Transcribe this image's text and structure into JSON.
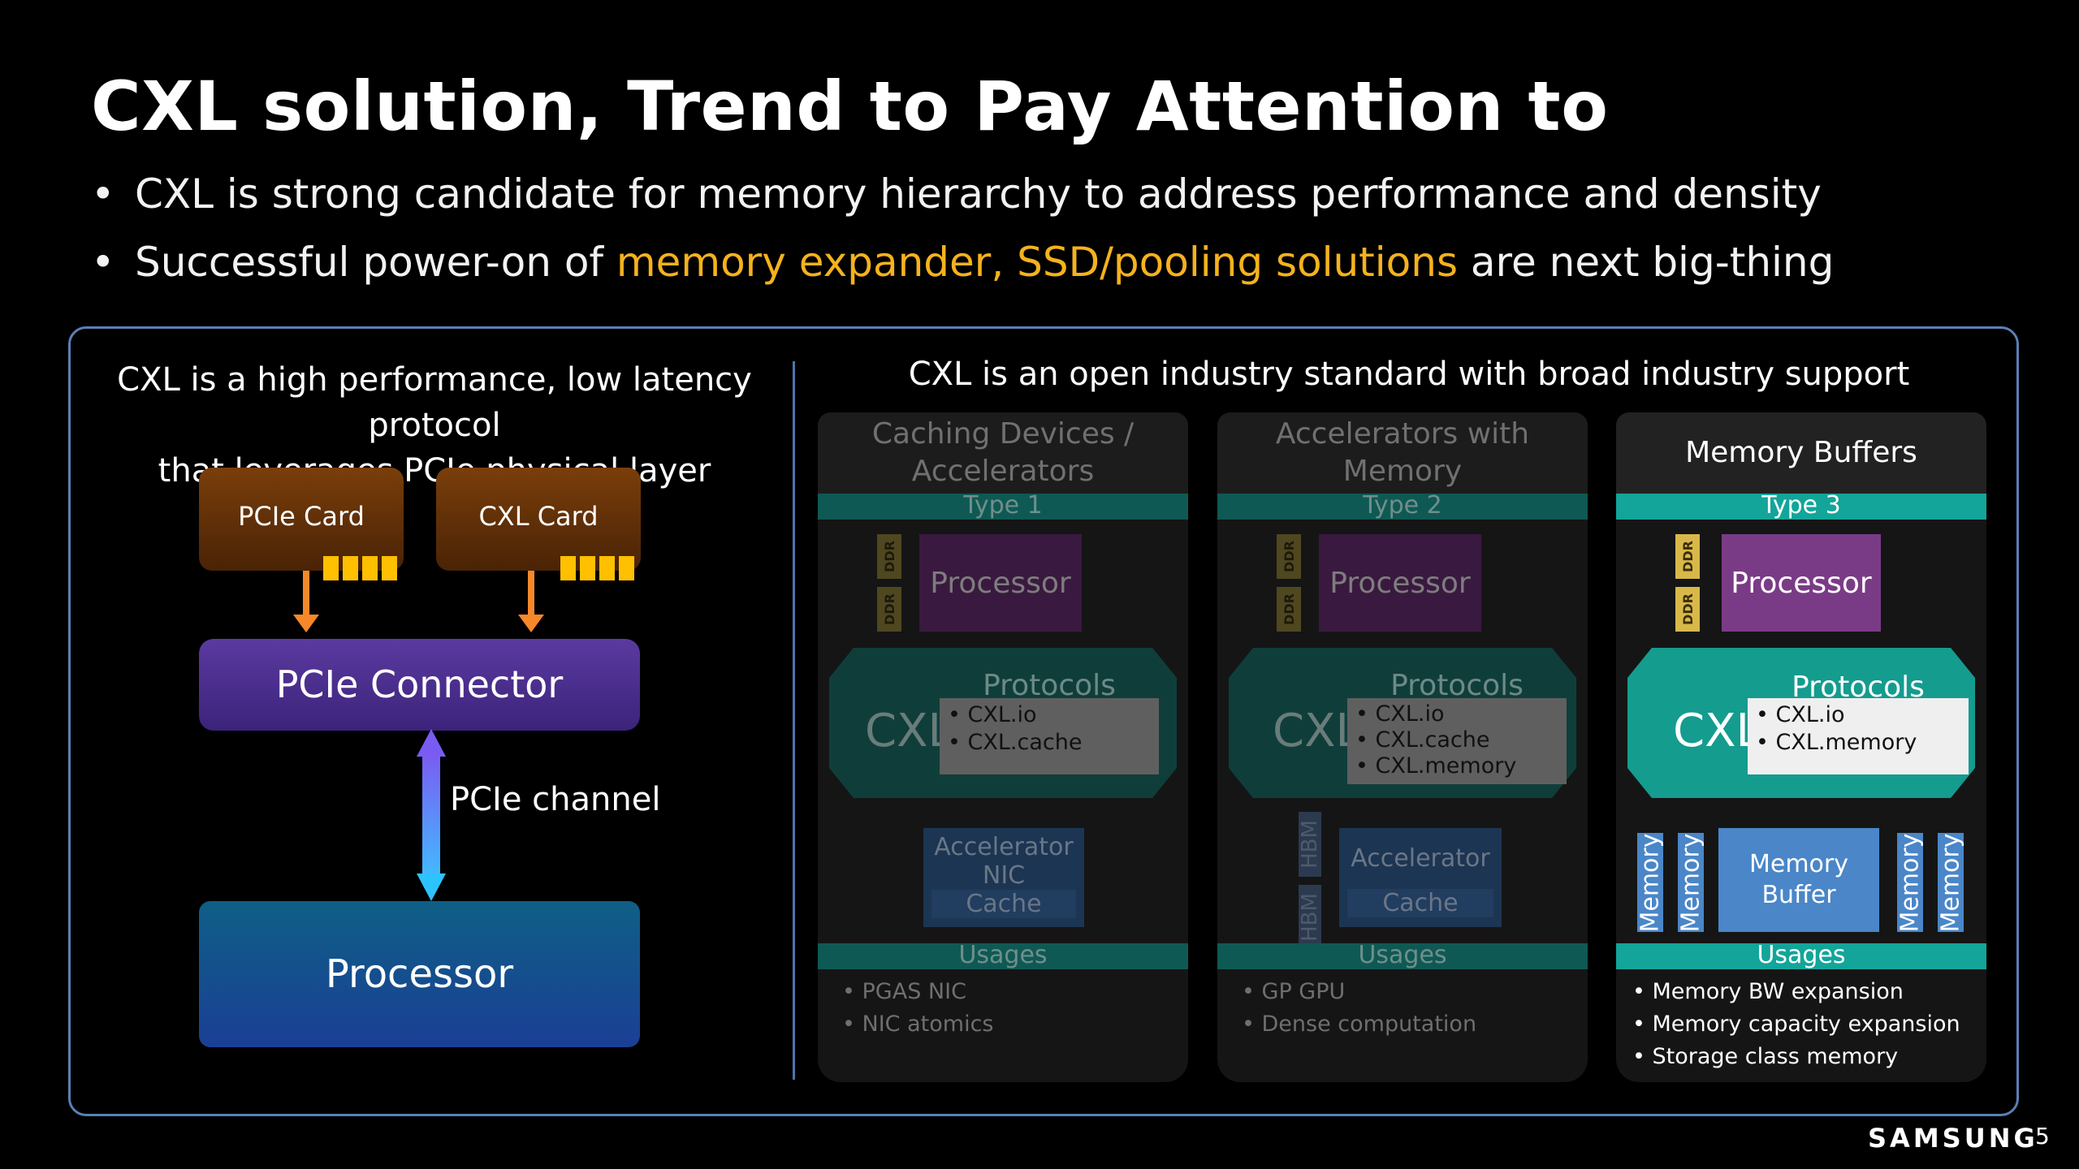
{
  "slide": {
    "title": "CXL solution, Trend to Pay Attention to",
    "bullets": [
      {
        "text": "CXL is strong candidate for memory hierarchy to address performance and density"
      },
      {
        "pre": "Successful power-on of ",
        "highlight": "memory expander, SSD/pooling solutions",
        "post": " are next big-thing"
      }
    ],
    "bullet_symbol": "•",
    "highlight_color": "#f5b21d"
  },
  "left_panel": {
    "title_line1": "CXL is a high performance, low latency protocol",
    "title_line2": "that leverages PCIe physical layer",
    "pcie_card": "PCIe Card",
    "cxl_card": "CXL Card",
    "connector": "PCIe Connector",
    "channel": "PCIe channel",
    "processor": "Processor"
  },
  "right_panel": {
    "title": "CXL is an open industry standard with broad industry support",
    "columns": [
      {
        "header": "Caching Devices / Accelerators",
        "type": "Type 1",
        "ddr": "DDR",
        "processor": "Processor",
        "cxl": "CXL",
        "protocols_title": "Protocols",
        "protocols": [
          "CXL.io",
          "CXL.cache"
        ],
        "accelerator": "Accelerator",
        "accelerator_sub": "NIC",
        "cache": "Cache",
        "usages_title": "Usages",
        "usages": [
          "PGAS NIC",
          "NIC atomics"
        ]
      },
      {
        "header": "Accelerators with Memory",
        "type": "Type 2",
        "ddr": "DDR",
        "processor": "Processor",
        "cxl": "CXL",
        "protocols_title": "Protocols",
        "protocols": [
          "CXL.io",
          "CXL.cache",
          "CXL.memory"
        ],
        "hbm": "HBM",
        "accelerator": "Accelerator",
        "cache": "Cache",
        "usages_title": "Usages",
        "usages": [
          "GP GPU",
          "Dense computation"
        ]
      },
      {
        "header": "Memory Buffers",
        "type": "Type 3",
        "ddr": "DDR",
        "processor": "Processor",
        "cxl": "CXL",
        "protocols_title": "Protocols",
        "protocols": [
          "CXL.io",
          "CXL.memory"
        ],
        "memory": "Memory",
        "buffer_line1": "Memory",
        "buffer_line2": "Buffer",
        "usages_title": "Usages",
        "usages": [
          "Memory BW expansion",
          "Memory capacity expansion",
          "Storage class memory"
        ]
      }
    ]
  },
  "footer": {
    "logo": "SAMSUNG",
    "page": "5"
  }
}
